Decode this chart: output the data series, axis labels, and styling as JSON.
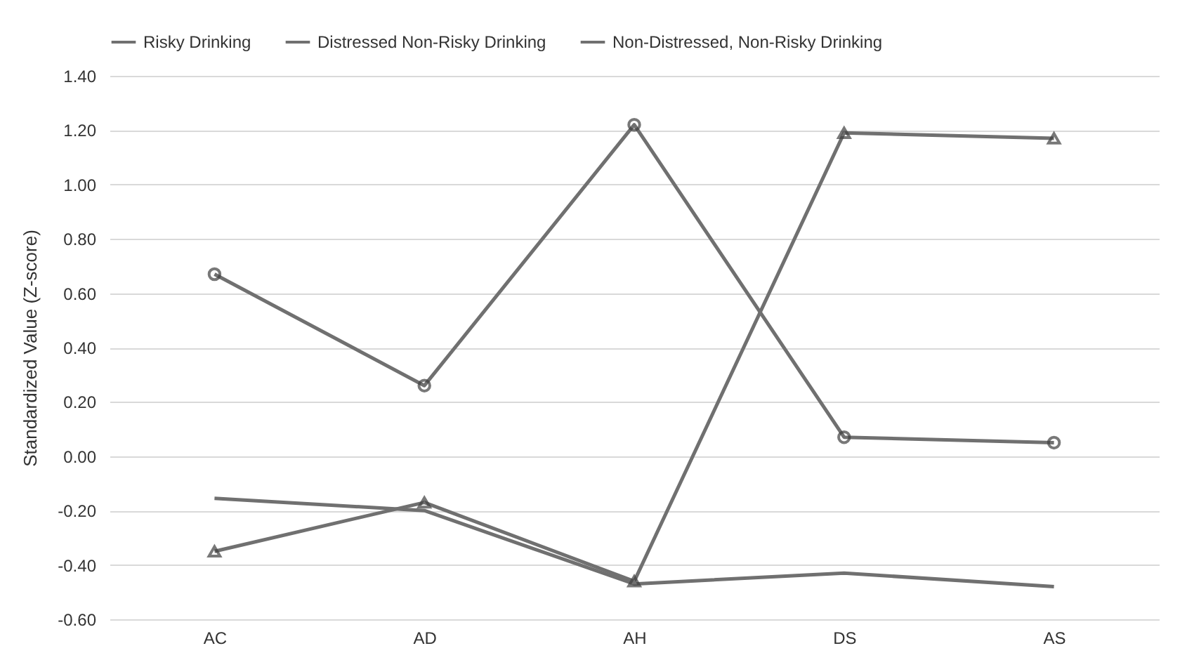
{
  "chart_data": {
    "type": "line",
    "ylabel": "Standardized Value (Z-score)",
    "categories": [
      "AC",
      "AD",
      "AH",
      "DS",
      "AS"
    ],
    "series": [
      {
        "name": "Risky Drinking",
        "color": "#707070",
        "marker": "circle",
        "values": [
          0.67,
          0.26,
          1.22,
          0.07,
          0.05
        ]
      },
      {
        "name": "Distressed Non-Risky Drinking",
        "color": "#707070",
        "marker": "triangle",
        "values": [
          -0.35,
          -0.17,
          -0.46,
          1.19,
          1.17
        ]
      },
      {
        "name": "Non-Distressed, Non-Risky Drinking",
        "color": "#707070",
        "marker": "none",
        "values": [
          -0.155,
          -0.2,
          -0.47,
          -0.43,
          -0.48
        ]
      }
    ],
    "ylim": [
      -0.6,
      1.4
    ],
    "yticks": [
      {
        "value": -0.6,
        "label": "-0.60"
      },
      {
        "value": -0.4,
        "label": "-0.40"
      },
      {
        "value": -0.2,
        "label": "-0.20"
      },
      {
        "value": 0,
        "label": "0.00"
      },
      {
        "value": 0.2,
        "label": "0.20"
      },
      {
        "value": 0.4,
        "label": "0.40"
      },
      {
        "value": 0.6,
        "label": "0.60"
      },
      {
        "value": 0.8,
        "label": "0.80"
      },
      {
        "value": 1.0,
        "label": "1.00"
      },
      {
        "value": 1.2,
        "label": "1.20"
      },
      {
        "value": 1.4,
        "label": "1.40"
      }
    ],
    "grid": "y",
    "legend": "top",
    "line_style": "solid"
  }
}
